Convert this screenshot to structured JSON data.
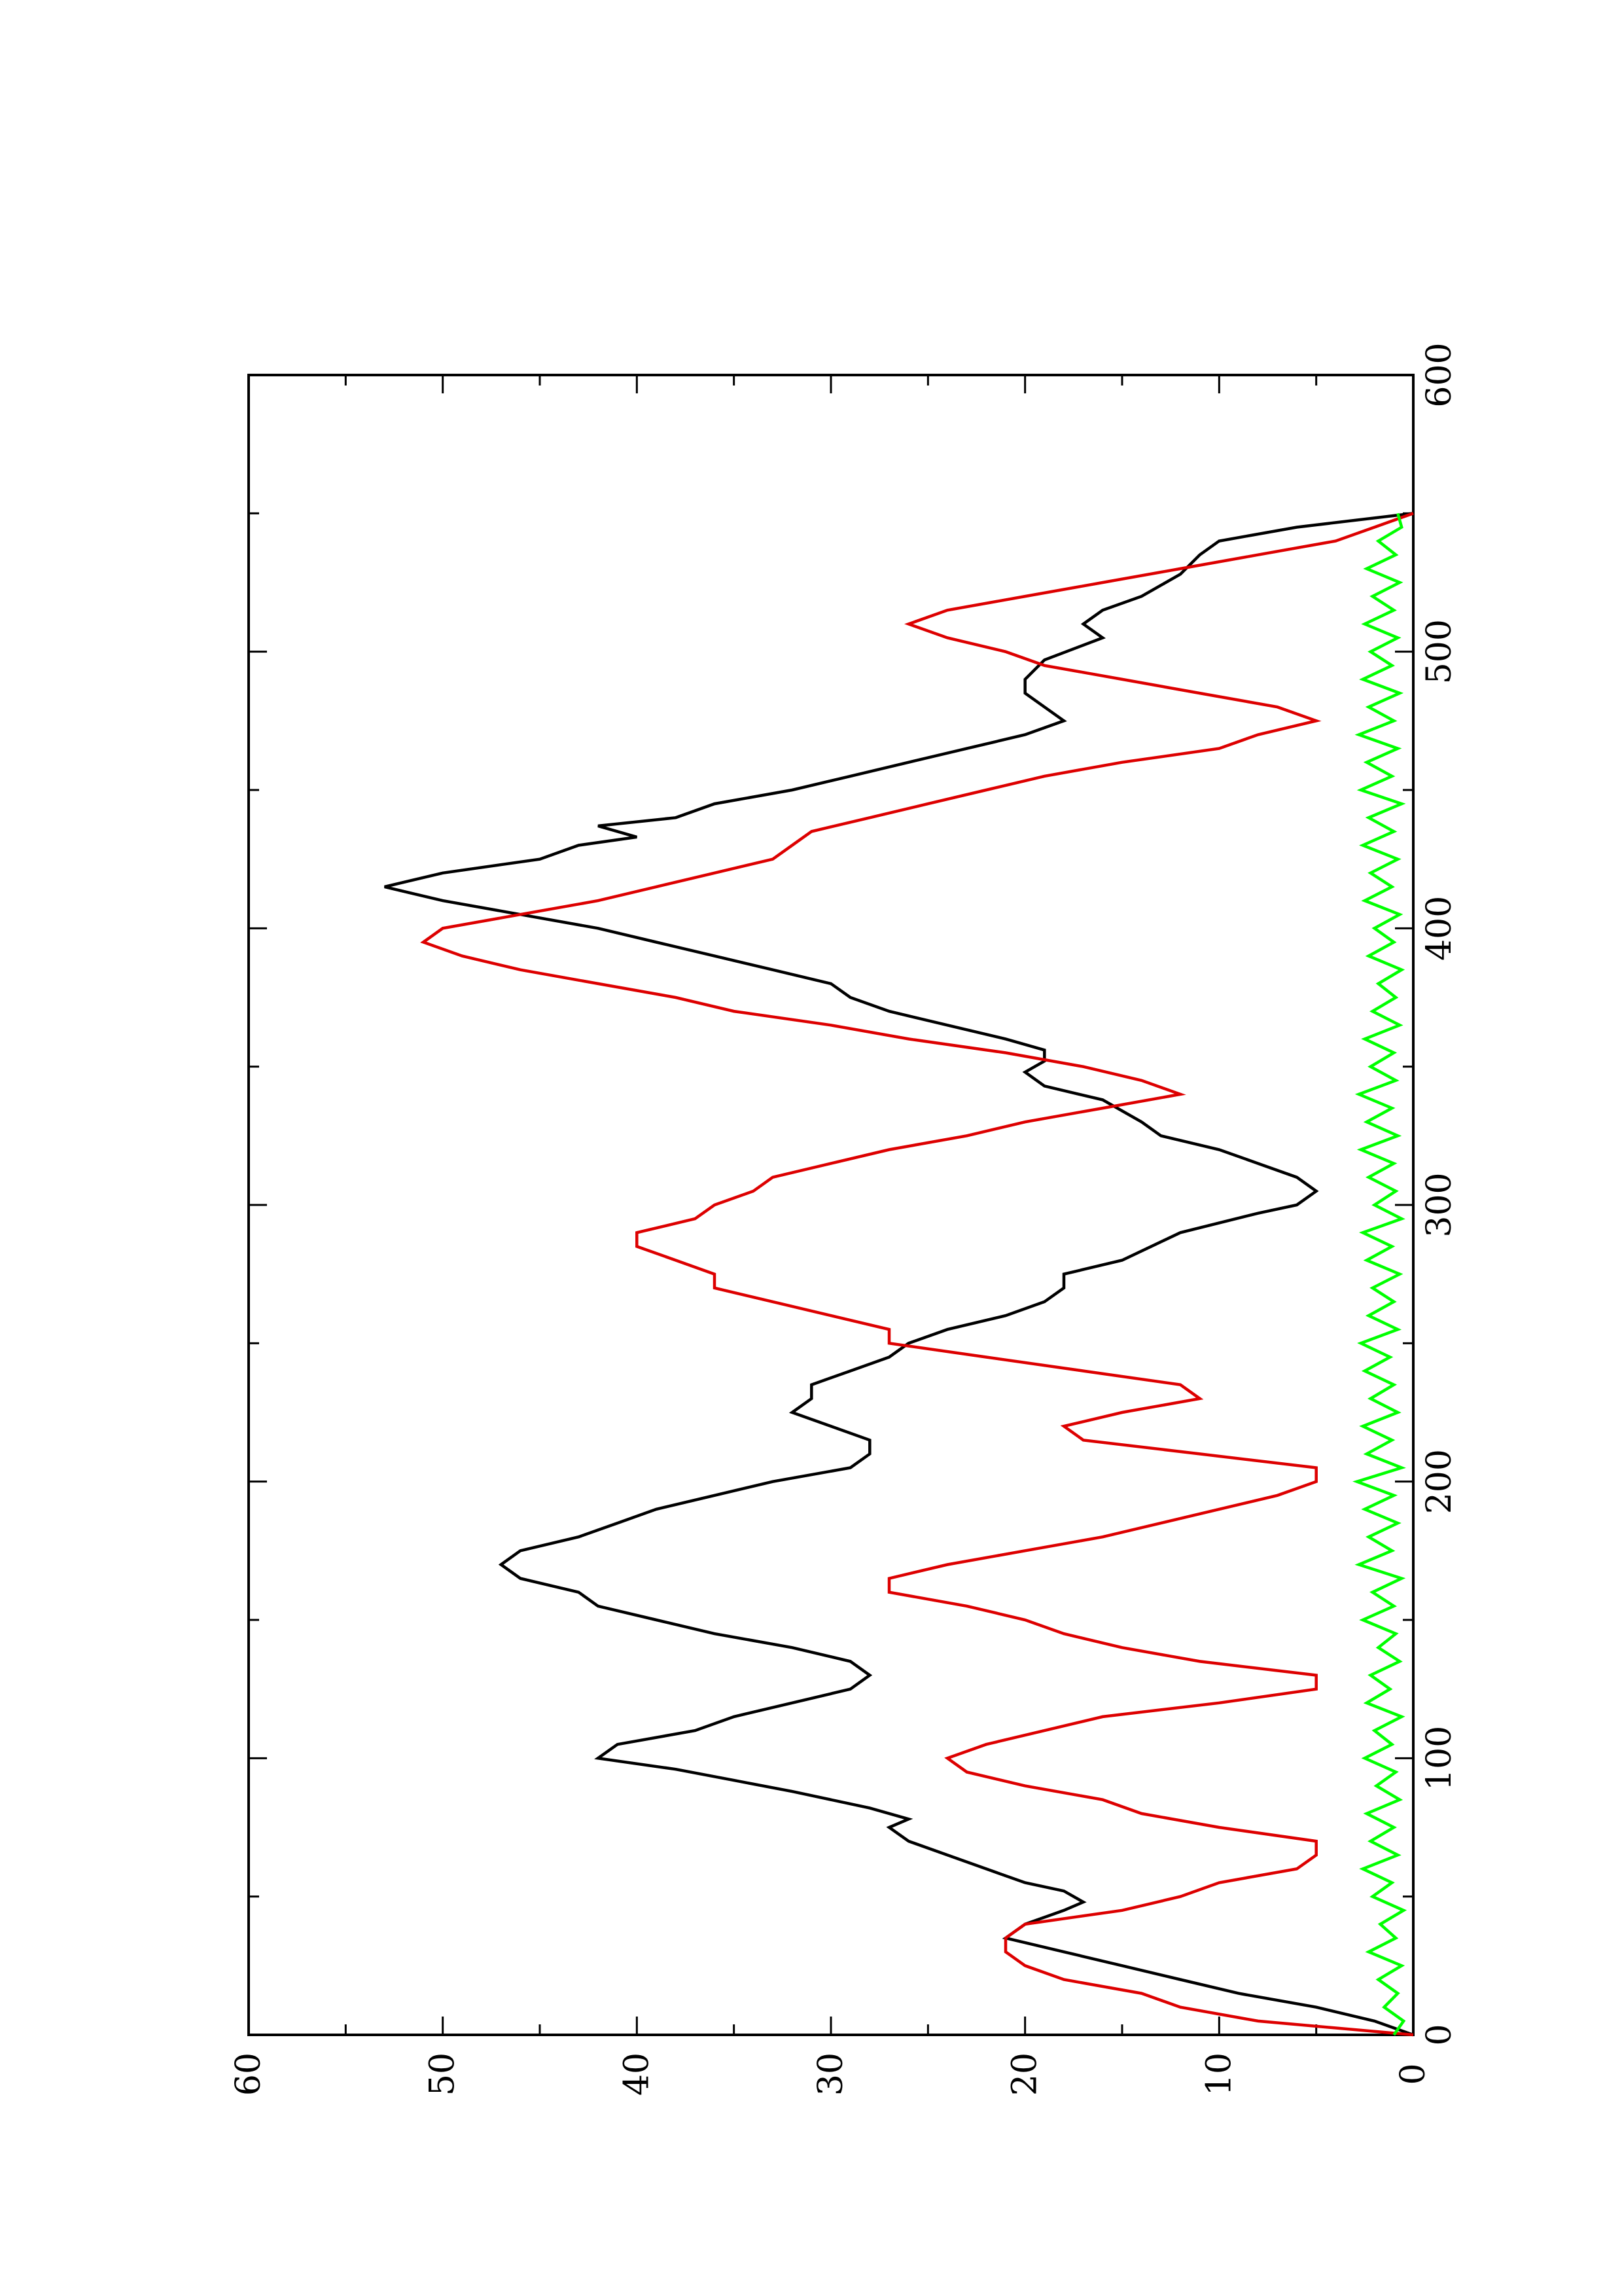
{
  "chart_data": {
    "type": "line",
    "orientation": "rotated-90-ccw",
    "xlim": [
      0,
      600
    ],
    "ylim": [
      0,
      60
    ],
    "x_ticks": [
      0,
      100,
      200,
      300,
      400,
      500,
      600
    ],
    "y_ticks": [
      0,
      10,
      20,
      30,
      40,
      50,
      60
    ],
    "grid": false,
    "legend": "none",
    "series": [
      {
        "color": "#000000",
        "points": [
          [
            0,
            0
          ],
          [
            5,
            2
          ],
          [
            10,
            5
          ],
          [
            15,
            9
          ],
          [
            20,
            12
          ],
          [
            25,
            15
          ],
          [
            30,
            18
          ],
          [
            35,
            21
          ],
          [
            40,
            20
          ],
          [
            45,
            18
          ],
          [
            48,
            17
          ],
          [
            52,
            18
          ],
          [
            55,
            20
          ],
          [
            60,
            22
          ],
          [
            65,
            24
          ],
          [
            70,
            26
          ],
          [
            75,
            27
          ],
          [
            78,
            26
          ],
          [
            82,
            28
          ],
          [
            88,
            32
          ],
          [
            92,
            35
          ],
          [
            96,
            38
          ],
          [
            100,
            42
          ],
          [
            105,
            41
          ],
          [
            110,
            37
          ],
          [
            115,
            35
          ],
          [
            120,
            32
          ],
          [
            125,
            29
          ],
          [
            130,
            28
          ],
          [
            135,
            29
          ],
          [
            140,
            32
          ],
          [
            145,
            36
          ],
          [
            150,
            39
          ],
          [
            155,
            42
          ],
          [
            160,
            43
          ],
          [
            165,
            46
          ],
          [
            170,
            47
          ],
          [
            175,
            46
          ],
          [
            180,
            43
          ],
          [
            185,
            41
          ],
          [
            190,
            39
          ],
          [
            195,
            36
          ],
          [
            200,
            33
          ],
          [
            205,
            29
          ],
          [
            210,
            28
          ],
          [
            215,
            28
          ],
          [
            220,
            30
          ],
          [
            225,
            32
          ],
          [
            230,
            31
          ],
          [
            235,
            31
          ],
          [
            240,
            29
          ],
          [
            245,
            27
          ],
          [
            250,
            26
          ],
          [
            255,
            24
          ],
          [
            260,
            21
          ],
          [
            265,
            19
          ],
          [
            270,
            18
          ],
          [
            275,
            18
          ],
          [
            280,
            15
          ],
          [
            290,
            12
          ],
          [
            297,
            8
          ],
          [
            300,
            6
          ],
          [
            305,
            5
          ],
          [
            310,
            6
          ],
          [
            315,
            8
          ],
          [
            320,
            10
          ],
          [
            325,
            13
          ],
          [
            330,
            14
          ],
          [
            338,
            16
          ],
          [
            343,
            19
          ],
          [
            348,
            20
          ],
          [
            352,
            19
          ],
          [
            356,
            19
          ],
          [
            360,
            21
          ],
          [
            365,
            24
          ],
          [
            370,
            27
          ],
          [
            375,
            29
          ],
          [
            380,
            30
          ],
          [
            385,
            33
          ],
          [
            390,
            36
          ],
          [
            395,
            39
          ],
          [
            400,
            42
          ],
          [
            405,
            46
          ],
          [
            410,
            50
          ],
          [
            415,
            53
          ],
          [
            420,
            50
          ],
          [
            425,
            45
          ],
          [
            430,
            43
          ],
          [
            433,
            40
          ],
          [
            437,
            42
          ],
          [
            440,
            38
          ],
          [
            445,
            36
          ],
          [
            450,
            32
          ],
          [
            455,
            29
          ],
          [
            460,
            26
          ],
          [
            465,
            23
          ],
          [
            470,
            20
          ],
          [
            475,
            18
          ],
          [
            480,
            19
          ],
          [
            485,
            20
          ],
          [
            490,
            20
          ],
          [
            497,
            19
          ],
          [
            505,
            16
          ],
          [
            510,
            17
          ],
          [
            515,
            16
          ],
          [
            520,
            14
          ],
          [
            528,
            12
          ],
          [
            535,
            11
          ],
          [
            540,
            10
          ],
          [
            545,
            6
          ],
          [
            550,
            0
          ]
        ]
      },
      {
        "color": "#dd0000",
        "points": [
          [
            0,
            0
          ],
          [
            5,
            8
          ],
          [
            10,
            12
          ],
          [
            15,
            14
          ],
          [
            20,
            18
          ],
          [
            25,
            20
          ],
          [
            30,
            21
          ],
          [
            35,
            21
          ],
          [
            40,
            20
          ],
          [
            45,
            15
          ],
          [
            50,
            12
          ],
          [
            55,
            10
          ],
          [
            60,
            6
          ],
          [
            65,
            5
          ],
          [
            70,
            5
          ],
          [
            75,
            10
          ],
          [
            80,
            14
          ],
          [
            85,
            16
          ],
          [
            90,
            20
          ],
          [
            95,
            23
          ],
          [
            100,
            24
          ],
          [
            105,
            22
          ],
          [
            110,
            19
          ],
          [
            115,
            16
          ],
          [
            120,
            10
          ],
          [
            125,
            5
          ],
          [
            130,
            5
          ],
          [
            135,
            11
          ],
          [
            140,
            15
          ],
          [
            145,
            18
          ],
          [
            150,
            20
          ],
          [
            155,
            23
          ],
          [
            160,
            27
          ],
          [
            165,
            27
          ],
          [
            170,
            24
          ],
          [
            175,
            20
          ],
          [
            180,
            16
          ],
          [
            185,
            13
          ],
          [
            190,
            10
          ],
          [
            195,
            7
          ],
          [
            200,
            5
          ],
          [
            205,
            5
          ],
          [
            210,
            11
          ],
          [
            215,
            17
          ],
          [
            220,
            18
          ],
          [
            225,
            15
          ],
          [
            230,
            11
          ],
          [
            235,
            12
          ],
          [
            240,
            17
          ],
          [
            245,
            22
          ],
          [
            250,
            27
          ],
          [
            255,
            27
          ],
          [
            260,
            30
          ],
          [
            265,
            33
          ],
          [
            270,
            36
          ],
          [
            275,
            36
          ],
          [
            280,
            38
          ],
          [
            285,
            40
          ],
          [
            290,
            40
          ],
          [
            295,
            37
          ],
          [
            300,
            36
          ],
          [
            305,
            34
          ],
          [
            310,
            33
          ],
          [
            315,
            30
          ],
          [
            320,
            27
          ],
          [
            325,
            23
          ],
          [
            330,
            20
          ],
          [
            335,
            16
          ],
          [
            340,
            12
          ],
          [
            345,
            14
          ],
          [
            350,
            17
          ],
          [
            355,
            21
          ],
          [
            360,
            26
          ],
          [
            365,
            30
          ],
          [
            370,
            35
          ],
          [
            375,
            38
          ],
          [
            380,
            42
          ],
          [
            385,
            46
          ],
          [
            390,
            49
          ],
          [
            395,
            51
          ],
          [
            400,
            50
          ],
          [
            405,
            46
          ],
          [
            410,
            42
          ],
          [
            415,
            39
          ],
          [
            420,
            36
          ],
          [
            425,
            33
          ],
          [
            430,
            32
          ],
          [
            435,
            31
          ],
          [
            440,
            28
          ],
          [
            445,
            25
          ],
          [
            450,
            22
          ],
          [
            455,
            19
          ],
          [
            460,
            15
          ],
          [
            465,
            10
          ],
          [
            470,
            8
          ],
          [
            475,
            5
          ],
          [
            480,
            7
          ],
          [
            485,
            11
          ],
          [
            490,
            15
          ],
          [
            495,
            19
          ],
          [
            500,
            21
          ],
          [
            505,
            24
          ],
          [
            510,
            26
          ],
          [
            515,
            24
          ],
          [
            520,
            20
          ],
          [
            525,
            16
          ],
          [
            530,
            12
          ],
          [
            535,
            8
          ],
          [
            540,
            4
          ],
          [
            545,
            2
          ],
          [
            550,
            0
          ]
        ]
      },
      {
        "color": "#00ff00",
        "points": [
          [
            0,
            1
          ],
          [
            5,
            0.5
          ],
          [
            10,
            1.5
          ],
          [
            15,
            0.8
          ],
          [
            20,
            1.8
          ],
          [
            25,
            0.6
          ],
          [
            30,
            2.3
          ],
          [
            35,
            0.9
          ],
          [
            40,
            1.7
          ],
          [
            45,
            0.5
          ],
          [
            50,
            2.1
          ],
          [
            55,
            1.1
          ],
          [
            60,
            2.6
          ],
          [
            65,
            0.8
          ],
          [
            70,
            2.2
          ],
          [
            75,
            1
          ],
          [
            80,
            2.4
          ],
          [
            85,
            0.7
          ],
          [
            90,
            1.9
          ],
          [
            95,
            0.9
          ],
          [
            100,
            2.5
          ],
          [
            105,
            1.1
          ],
          [
            110,
            2
          ],
          [
            115,
            0.6
          ],
          [
            120,
            2.4
          ],
          [
            125,
            1.2
          ],
          [
            130,
            2.2
          ],
          [
            135,
            0.7
          ],
          [
            140,
            1.8
          ],
          [
            145,
            0.9
          ],
          [
            150,
            2.6
          ],
          [
            155,
            1
          ],
          [
            160,
            2.1
          ],
          [
            165,
            0.6
          ],
          [
            170,
            2.8
          ],
          [
            175,
            1.1
          ],
          [
            180,
            2.3
          ],
          [
            185,
            0.8
          ],
          [
            190,
            2.5
          ],
          [
            195,
            1
          ],
          [
            200,
            2.9
          ],
          [
            205,
            0.6
          ],
          [
            210,
            2.4
          ],
          [
            215,
            1.1
          ],
          [
            220,
            2.6
          ],
          [
            225,
            0.8
          ],
          [
            230,
            2.2
          ],
          [
            235,
            1
          ],
          [
            240,
            2.5
          ],
          [
            245,
            1.2
          ],
          [
            250,
            2.7
          ],
          [
            255,
            0.8
          ],
          [
            260,
            2.3
          ],
          [
            265,
            1
          ],
          [
            270,
            2.1
          ],
          [
            275,
            0.7
          ],
          [
            280,
            2.4
          ],
          [
            285,
            1.1
          ],
          [
            290,
            2.6
          ],
          [
            295,
            0.6
          ],
          [
            300,
            2
          ],
          [
            305,
            0.9
          ],
          [
            310,
            2.3
          ],
          [
            315,
            1
          ],
          [
            320,
            2.7
          ],
          [
            325,
            0.8
          ],
          [
            330,
            2.4
          ],
          [
            335,
            1.1
          ],
          [
            340,
            2.8
          ],
          [
            345,
            0.9
          ],
          [
            350,
            2.2
          ],
          [
            355,
            1
          ],
          [
            360,
            2.5
          ],
          [
            365,
            0.7
          ],
          [
            370,
            2.1
          ],
          [
            375,
            0.9
          ],
          [
            380,
            1.8
          ],
          [
            385,
            0.6
          ],
          [
            390,
            2.3
          ],
          [
            395,
            1
          ],
          [
            400,
            2
          ],
          [
            405,
            0.7
          ],
          [
            410,
            2.5
          ],
          [
            415,
            1.1
          ],
          [
            420,
            2.2
          ],
          [
            425,
            0.8
          ],
          [
            430,
            2.6
          ],
          [
            435,
            1
          ],
          [
            440,
            2.3
          ],
          [
            445,
            0.6
          ],
          [
            450,
            2.7
          ],
          [
            455,
            1.1
          ],
          [
            460,
            2.4
          ],
          [
            465,
            0.8
          ],
          [
            470,
            2.8
          ],
          [
            475,
            1
          ],
          [
            480,
            2.3
          ],
          [
            485,
            0.7
          ],
          [
            490,
            2.6
          ],
          [
            495,
            1.1
          ],
          [
            500,
            2.2
          ],
          [
            505,
            0.8
          ],
          [
            510,
            2.5
          ],
          [
            515,
            1
          ],
          [
            520,
            2.1
          ],
          [
            525,
            0.7
          ],
          [
            530,
            2.4
          ],
          [
            535,
            0.9
          ],
          [
            540,
            1.8
          ],
          [
            545,
            0.6
          ],
          [
            550,
            0.8
          ]
        ]
      }
    ]
  }
}
